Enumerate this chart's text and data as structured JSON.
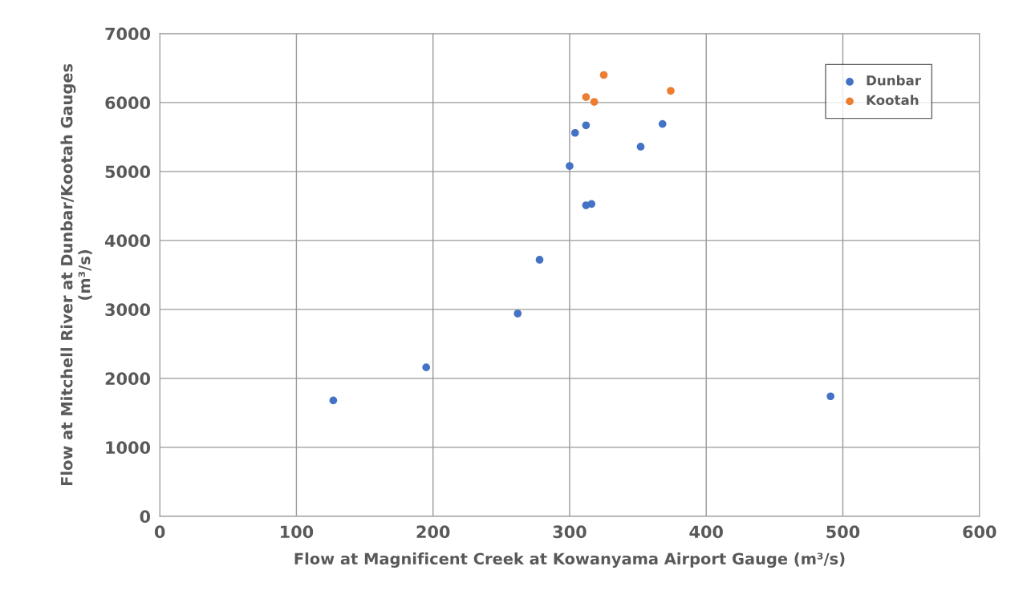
{
  "chart_data": {
    "type": "scatter",
    "xlabel": "Flow at Magnificent Creek at Kowanyama Airport Gauge (m³/s)",
    "ylabel": "Flow at Mitchell River at Dunbar/Kootah Gauges\n(m³/s)",
    "series": [
      {
        "name": "Dunbar",
        "color": "#4472c4",
        "x": [
          127,
          195,
          262,
          278,
          300,
          304,
          312,
          312,
          316,
          352,
          368,
          491
        ],
        "values": [
          1680,
          2160,
          2940,
          3720,
          5080,
          5560,
          5670,
          4510,
          4530,
          5360,
          5690,
          1740
        ]
      },
      {
        "name": "Kootah",
        "color": "#ed7d31",
        "x": [
          312,
          318,
          325,
          374
        ],
        "values": [
          6080,
          6010,
          6400,
          6170
        ]
      }
    ],
    "xlim": [
      0,
      600
    ],
    "xticks": [
      0,
      100,
      200,
      300,
      400,
      500,
      600
    ],
    "ylim": [
      0,
      7000
    ],
    "yticks": [
      0,
      1000,
      2000,
      3000,
      4000,
      5000,
      6000,
      7000
    ],
    "grid": true,
    "legend": "top right",
    "marker": "circle"
  }
}
